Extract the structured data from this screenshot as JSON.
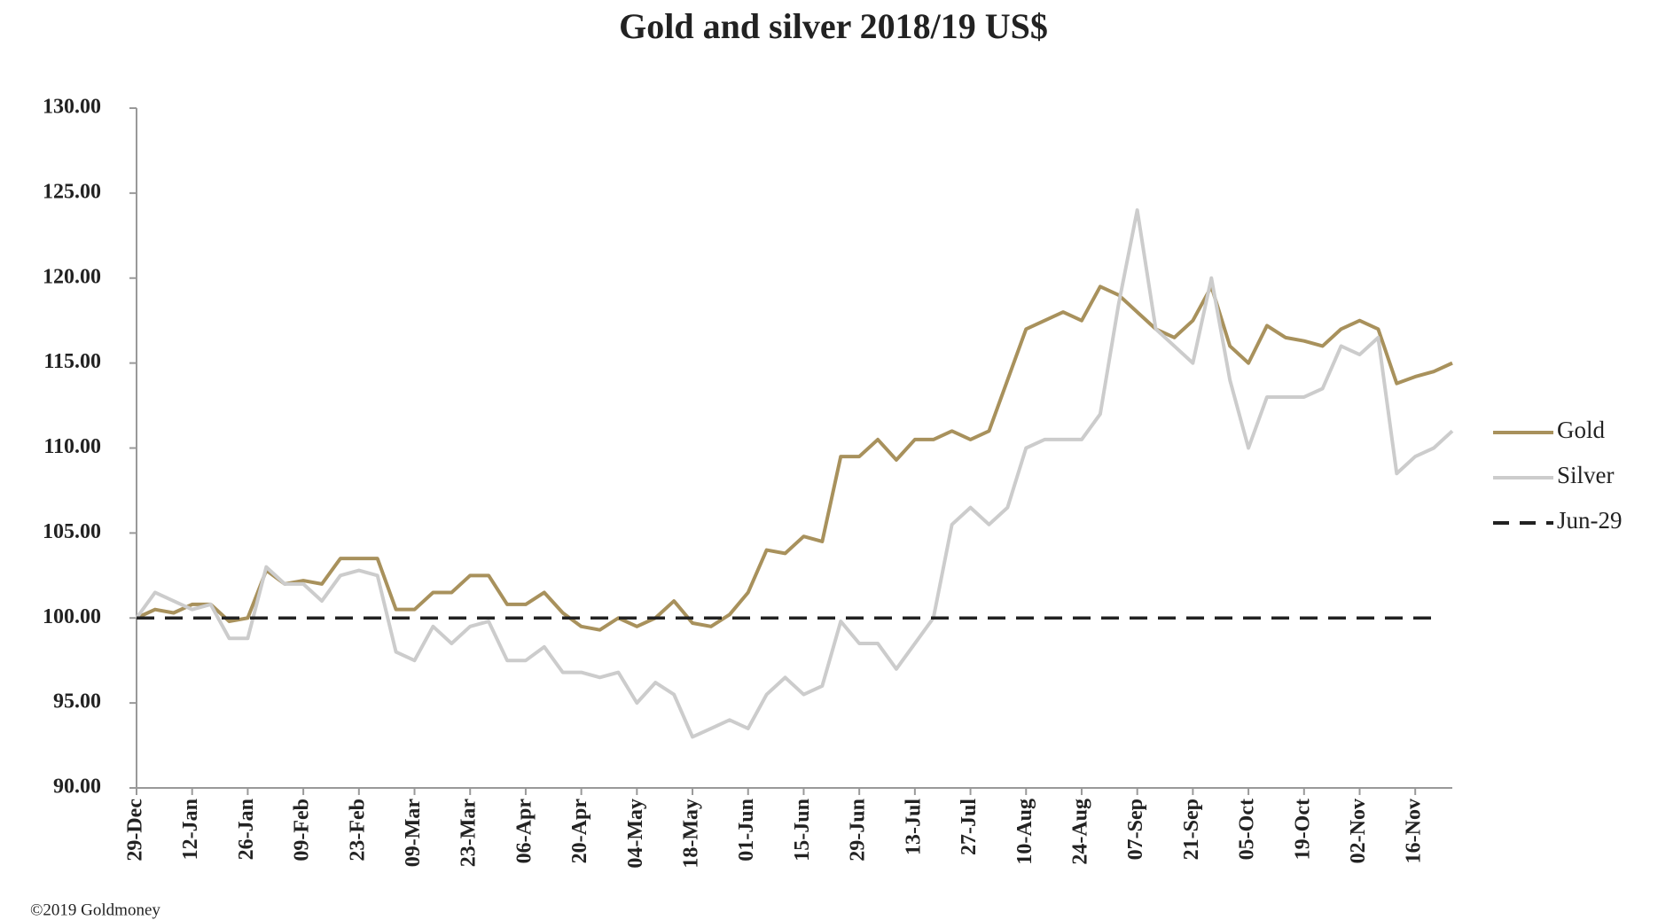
{
  "chart_data": {
    "type": "line",
    "title": "Gold and silver 2018/19  US$",
    "source": "©2019 Goldmoney",
    "categories": [
      "29-Dec",
      null,
      null,
      "12-Jan",
      null,
      null,
      "26-Jan",
      null,
      null,
      "09-Feb",
      null,
      null,
      "23-Feb",
      null,
      null,
      "09-Mar",
      null,
      null,
      "23-Mar",
      null,
      null,
      "06-Apr",
      null,
      null,
      "20-Apr",
      null,
      null,
      "04-May",
      null,
      null,
      "18-May",
      null,
      null,
      "01-Jun",
      null,
      null,
      "15-Jun",
      null,
      null,
      "29-Jun",
      null,
      null,
      "13-Jul",
      null,
      null,
      "27-Jul",
      null,
      null,
      "10-Aug",
      null,
      null,
      "24-Aug",
      null,
      null,
      "07-Sep",
      null,
      null,
      "21-Sep",
      null,
      null,
      "05-Oct",
      null,
      null,
      "19-Oct",
      null,
      null,
      "02-Nov",
      null,
      null,
      "16-Nov",
      null,
      null
    ],
    "series": [
      {
        "name": "Gold",
        "color": "#a8915c",
        "values": [
          100,
          100.5,
          100.3,
          100.8,
          100.8,
          99.8,
          100,
          102.8,
          102,
          102.2,
          102,
          103.5,
          103.5,
          103.5,
          100.5,
          100.5,
          101.5,
          101.5,
          102.5,
          102.5,
          100.8,
          100.8,
          101.5,
          100.3,
          99.5,
          99.3,
          100,
          99.5,
          100,
          101,
          99.7,
          99.5,
          100.2,
          101.5,
          104,
          103.8,
          104.8,
          104.5,
          109.5,
          109.5,
          110.5,
          109.3,
          110.5,
          110.5,
          111,
          110.5,
          111,
          114,
          117,
          117.5,
          118,
          117.5,
          119.5,
          119,
          118,
          117,
          116.5,
          117.5,
          119.5,
          116,
          115,
          117.2,
          116.5,
          116.3,
          116,
          117,
          117.5,
          117,
          113.8,
          114.2,
          114.5,
          115
        ]
      },
      {
        "name": "Silver",
        "color": "#cccccc",
        "values": [
          100,
          101.5,
          101,
          100.5,
          100.8,
          98.8,
          98.8,
          103,
          102,
          102,
          101,
          102.5,
          102.8,
          102.5,
          98,
          97.5,
          99.5,
          98.5,
          99.5,
          99.8,
          97.5,
          97.5,
          98.3,
          96.8,
          96.8,
          96.5,
          96.8,
          95,
          96.2,
          95.5,
          93,
          93.5,
          94,
          93.5,
          95.5,
          96.5,
          95.5,
          96,
          99.8,
          98.5,
          98.5,
          97,
          98.5,
          100,
          105.5,
          106.5,
          105.5,
          106.5,
          110,
          110.5,
          110.5,
          110.5,
          112,
          118.5,
          124,
          117,
          116,
          115,
          120,
          114,
          110,
          113,
          113,
          113,
          113.5,
          116,
          115.5,
          116.5,
          108.5,
          109.5,
          110,
          111
        ]
      }
    ],
    "reference_line": {
      "name": "Jun-29",
      "value": 100,
      "color": "#222222",
      "dashed": true
    },
    "ylim": [
      90,
      130
    ],
    "yticks": [
      {
        "value": 90,
        "label": "90.00"
      },
      {
        "value": 95,
        "label": "95.00"
      },
      {
        "value": 100,
        "label": "100.00"
      },
      {
        "value": 105,
        "label": "105.00"
      },
      {
        "value": 110,
        "label": "110.00"
      },
      {
        "value": 115,
        "label": "115.00"
      },
      {
        "value": 120,
        "label": "120.00"
      },
      {
        "value": 125,
        "label": "125.00"
      },
      {
        "value": 130,
        "label": "130.00"
      }
    ],
    "grid": false
  }
}
